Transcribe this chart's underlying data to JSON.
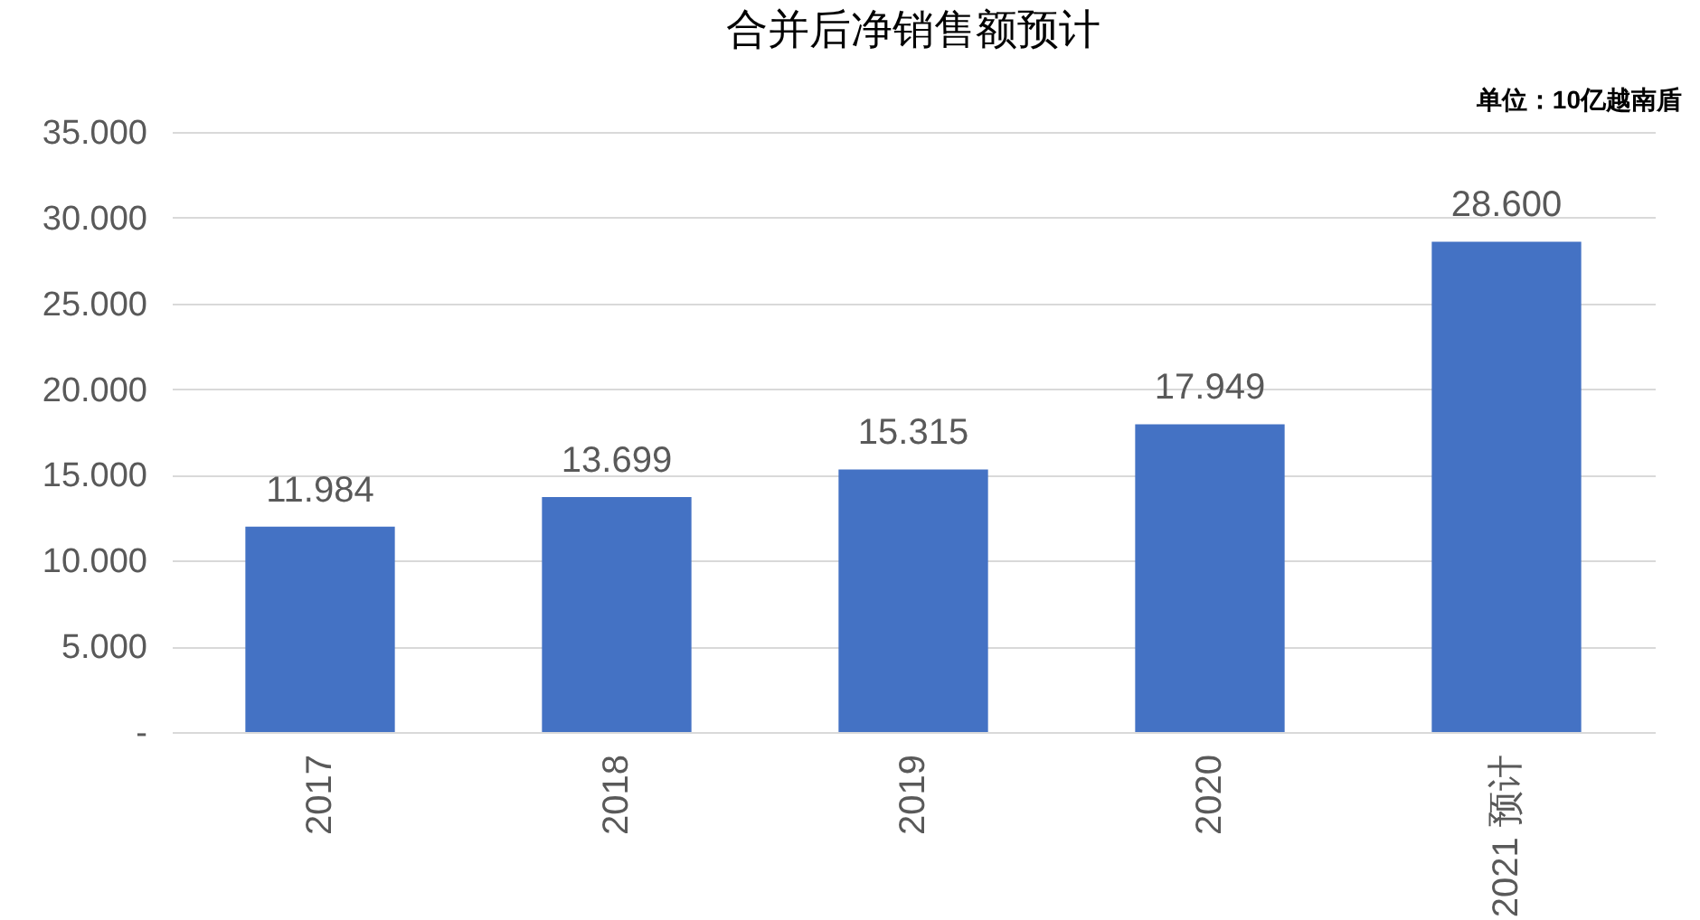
{
  "chart_data": {
    "type": "bar",
    "title": "合并后净销售额预计",
    "annotations": [
      "单位：10亿越南盾"
    ],
    "categories": [
      "2017",
      "2018",
      "2019",
      "2020",
      "2021 预计"
    ],
    "values": [
      11984,
      13699,
      15315,
      17949,
      28600
    ],
    "value_labels": [
      "11.984",
      "13.699",
      "15.315",
      "17.949",
      "28.600"
    ],
    "color": "#4472c4",
    "ylim": [
      0,
      35000
    ],
    "yticks": [
      {
        "value": 0,
        "label": "-"
      },
      {
        "value": 5000,
        "label": "5.000"
      },
      {
        "value": 10000,
        "label": "10.000"
      },
      {
        "value": 15000,
        "label": "15.000"
      },
      {
        "value": 20000,
        "label": "20.000"
      },
      {
        "value": 25000,
        "label": "25.000"
      },
      {
        "value": 30000,
        "label": "30.000"
      },
      {
        "value": 35000,
        "label": "35.000"
      }
    ],
    "grid": "y"
  }
}
